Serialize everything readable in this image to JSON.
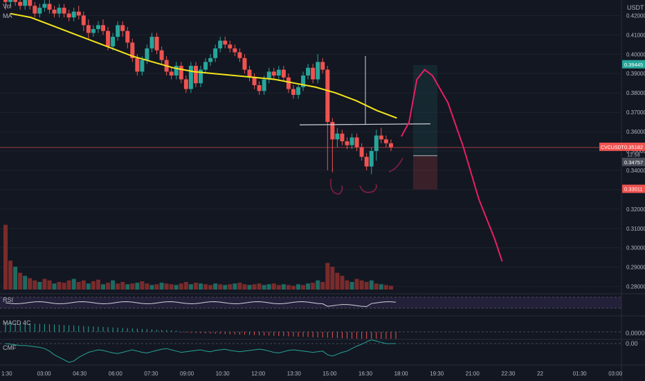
{
  "header": {
    "symbol": "CVCUSDT",
    "quote_currency": "USDT",
    "vol_label": "Vol",
    "ma_label": "MA"
  },
  "price_badges": {
    "last": {
      "label": "CVCUSDT",
      "value": "0.35182",
      "color": "#ef5350"
    },
    "countdown": "12:58",
    "target": {
      "value": "0.39445",
      "color": "#26a69a"
    },
    "entry": {
      "value": "0.34757",
      "color": "#787b86"
    },
    "stop": {
      "value": "0.33011",
      "color": "#ef5350"
    }
  },
  "indicators": {
    "rsi_label": "RSI",
    "macd_label": "MACD 4C",
    "cmf_label": "CMF",
    "macd_zero": "0.00000",
    "cmf_zero": "0.00"
  },
  "colors": {
    "up": "#26a69a",
    "down": "#ef5350",
    "ma": "#f5e61a",
    "drawing": "#e91e63",
    "background": "#131722",
    "grid": "#1e222d"
  },
  "chart_data": {
    "type": "candlestick",
    "y_axis_ticks": [
      "0.42000",
      "0.41000",
      "0.40000",
      "0.39000",
      "0.38000",
      "0.37000",
      "0.36000",
      "0.35000",
      "0.34000",
      "0.33000",
      "0.32000",
      "0.31000",
      "0.30000",
      "0.29000",
      "0.28000"
    ],
    "ylim": [
      0.277,
      0.428
    ],
    "x_axis_ticks": [
      "1:30",
      "03:00",
      "04:30",
      "06:00",
      "07:30",
      "09:00",
      "10:30",
      "12:00",
      "13:30",
      "15:00",
      "16:30",
      "18:00",
      "19:30",
      "21:00",
      "22:30",
      "22",
      "01:30",
      "03:00"
    ],
    "candles": [
      [
        0.429,
        0.427,
        0.429,
        0.423
      ],
      [
        0.427,
        0.428,
        0.432,
        0.425
      ],
      [
        0.428,
        0.427,
        0.43,
        0.425
      ],
      [
        0.427,
        0.425,
        0.429,
        0.423
      ],
      [
        0.425,
        0.428,
        0.43,
        0.423
      ],
      [
        0.428,
        0.425,
        0.43,
        0.423
      ],
      [
        0.425,
        0.421,
        0.427,
        0.419
      ],
      [
        0.421,
        0.424,
        0.426,
        0.419
      ],
      [
        0.424,
        0.426,
        0.428,
        0.422
      ],
      [
        0.426,
        0.423,
        0.428,
        0.421
      ],
      [
        0.423,
        0.421,
        0.425,
        0.419
      ],
      [
        0.421,
        0.424,
        0.426,
        0.419
      ],
      [
        0.424,
        0.421,
        0.426,
        0.419
      ],
      [
        0.421,
        0.419,
        0.423,
        0.417
      ],
      [
        0.419,
        0.422,
        0.424,
        0.417
      ],
      [
        0.422,
        0.42,
        0.425,
        0.418
      ],
      [
        0.42,
        0.415,
        0.422,
        0.412
      ],
      [
        0.415,
        0.411,
        0.418,
        0.408
      ],
      [
        0.411,
        0.413,
        0.415,
        0.409
      ],
      [
        0.413,
        0.415,
        0.417,
        0.411
      ],
      [
        0.415,
        0.412,
        0.418,
        0.41
      ],
      [
        0.412,
        0.404,
        0.414,
        0.402
      ],
      [
        0.404,
        0.409,
        0.411,
        0.402
      ],
      [
        0.409,
        0.415,
        0.417,
        0.407
      ],
      [
        0.415,
        0.412,
        0.417,
        0.409
      ],
      [
        0.412,
        0.406,
        0.414,
        0.403
      ],
      [
        0.406,
        0.398,
        0.408,
        0.396
      ],
      [
        0.398,
        0.391,
        0.4,
        0.389
      ],
      [
        0.391,
        0.397,
        0.399,
        0.389
      ],
      [
        0.397,
        0.403,
        0.405,
        0.395
      ],
      [
        0.403,
        0.409,
        0.411,
        0.401
      ],
      [
        0.409,
        0.402,
        0.411,
        0.4
      ],
      [
        0.402,
        0.397,
        0.404,
        0.395
      ],
      [
        0.397,
        0.391,
        0.399,
        0.389
      ],
      [
        0.391,
        0.389,
        0.393,
        0.387
      ],
      [
        0.389,
        0.394,
        0.396,
        0.387
      ],
      [
        0.394,
        0.387,
        0.396,
        0.385
      ],
      [
        0.387,
        0.382,
        0.389,
        0.38
      ],
      [
        0.382,
        0.394,
        0.396,
        0.38
      ],
      [
        0.394,
        0.385,
        0.396,
        0.383
      ],
      [
        0.385,
        0.392,
        0.394,
        0.383
      ],
      [
        0.392,
        0.396,
        0.398,
        0.39
      ],
      [
        0.396,
        0.398,
        0.4,
        0.394
      ],
      [
        0.398,
        0.403,
        0.405,
        0.396
      ],
      [
        0.403,
        0.407,
        0.409,
        0.401
      ],
      [
        0.407,
        0.405,
        0.409,
        0.403
      ],
      [
        0.405,
        0.403,
        0.407,
        0.401
      ],
      [
        0.403,
        0.401,
        0.405,
        0.399
      ],
      [
        0.401,
        0.398,
        0.403,
        0.396
      ],
      [
        0.398,
        0.392,
        0.4,
        0.39
      ],
      [
        0.392,
        0.388,
        0.394,
        0.386
      ],
      [
        0.388,
        0.384,
        0.39,
        0.382
      ],
      [
        0.384,
        0.381,
        0.386,
        0.379
      ],
      [
        0.381,
        0.387,
        0.389,
        0.379
      ],
      [
        0.387,
        0.391,
        0.393,
        0.385
      ],
      [
        0.391,
        0.389,
        0.393,
        0.387
      ],
      [
        0.389,
        0.392,
        0.394,
        0.387
      ],
      [
        0.392,
        0.388,
        0.394,
        0.386
      ],
      [
        0.388,
        0.382,
        0.39,
        0.38
      ],
      [
        0.382,
        0.379,
        0.384,
        0.377
      ],
      [
        0.379,
        0.383,
        0.385,
        0.377
      ],
      [
        0.383,
        0.389,
        0.391,
        0.381
      ],
      [
        0.389,
        0.393,
        0.395,
        0.387
      ],
      [
        0.393,
        0.387,
        0.395,
        0.385
      ],
      [
        0.387,
        0.396,
        0.4,
        0.385
      ],
      [
        0.396,
        0.392,
        0.398,
        0.39
      ],
      [
        0.392,
        0.365,
        0.394,
        0.34
      ],
      [
        0.365,
        0.356,
        0.367,
        0.339
      ],
      [
        0.356,
        0.359,
        0.362,
        0.352
      ],
      [
        0.359,
        0.355,
        0.361,
        0.353
      ],
      [
        0.355,
        0.353,
        0.357,
        0.351
      ],
      [
        0.353,
        0.357,
        0.359,
        0.351
      ],
      [
        0.357,
        0.352,
        0.359,
        0.35
      ],
      [
        0.352,
        0.347,
        0.354,
        0.345
      ],
      [
        0.347,
        0.342,
        0.349,
        0.34
      ],
      [
        0.342,
        0.35,
        0.352,
        0.338
      ],
      [
        0.35,
        0.358,
        0.361,
        0.345
      ],
      [
        0.358,
        0.356,
        0.362,
        0.354
      ],
      [
        0.356,
        0.354,
        0.358,
        0.352
      ],
      [
        0.354,
        0.352,
        0.356,
        0.35
      ]
    ],
    "volumes": [
      [
        0.85,
        "down"
      ],
      [
        0.38,
        "down"
      ],
      [
        0.3,
        "up"
      ],
      [
        0.22,
        "down"
      ],
      [
        0.18,
        "up"
      ],
      [
        0.15,
        "down"
      ],
      [
        0.12,
        "down"
      ],
      [
        0.1,
        "up"
      ],
      [
        0.14,
        "down"
      ],
      [
        0.12,
        "down"
      ],
      [
        0.08,
        "up"
      ],
      [
        0.1,
        "down"
      ],
      [
        0.09,
        "down"
      ],
      [
        0.12,
        "down"
      ],
      [
        0.14,
        "up"
      ],
      [
        0.1,
        "down"
      ],
      [
        0.12,
        "down"
      ],
      [
        0.08,
        "up"
      ],
      [
        0.11,
        "down"
      ],
      [
        0.13,
        "down"
      ],
      [
        0.07,
        "up"
      ],
      [
        0.09,
        "down"
      ],
      [
        0.12,
        "up"
      ],
      [
        0.08,
        "down"
      ],
      [
        0.1,
        "down"
      ],
      [
        0.07,
        "up"
      ],
      [
        0.08,
        "down"
      ],
      [
        0.09,
        "up"
      ],
      [
        0.11,
        "down"
      ],
      [
        0.08,
        "down"
      ],
      [
        0.06,
        "up"
      ],
      [
        0.07,
        "down"
      ],
      [
        0.09,
        "up"
      ],
      [
        0.08,
        "down"
      ],
      [
        0.07,
        "down"
      ],
      [
        0.06,
        "up"
      ],
      [
        0.08,
        "down"
      ],
      [
        0.1,
        "down"
      ],
      [
        0.07,
        "up"
      ],
      [
        0.09,
        "down"
      ],
      [
        0.08,
        "up"
      ],
      [
        0.07,
        "down"
      ],
      [
        0.06,
        "down"
      ],
      [
        0.08,
        "up"
      ],
      [
        0.07,
        "down"
      ],
      [
        0.06,
        "up"
      ],
      [
        0.07,
        "down"
      ],
      [
        0.08,
        "up"
      ],
      [
        0.09,
        "down"
      ],
      [
        0.07,
        "down"
      ],
      [
        0.06,
        "up"
      ],
      [
        0.07,
        "down"
      ],
      [
        0.08,
        "down"
      ],
      [
        0.06,
        "up"
      ],
      [
        0.07,
        "up"
      ],
      [
        0.08,
        "down"
      ],
      [
        0.06,
        "down"
      ],
      [
        0.07,
        "up"
      ],
      [
        0.06,
        "down"
      ],
      [
        0.05,
        "down"
      ],
      [
        0.07,
        "up"
      ],
      [
        0.06,
        "down"
      ],
      [
        0.08,
        "up"
      ],
      [
        0.09,
        "down"
      ],
      [
        0.12,
        "up"
      ],
      [
        0.1,
        "down"
      ],
      [
        0.35,
        "down"
      ],
      [
        0.3,
        "down"
      ],
      [
        0.22,
        "down"
      ],
      [
        0.18,
        "down"
      ],
      [
        0.12,
        "down"
      ],
      [
        0.1,
        "up"
      ],
      [
        0.14,
        "down"
      ],
      [
        0.12,
        "down"
      ],
      [
        0.1,
        "down"
      ],
      [
        0.12,
        "up"
      ],
      [
        0.08,
        "down"
      ],
      [
        0.07,
        "up"
      ],
      [
        0.06,
        "down"
      ],
      [
        0.05,
        "down"
      ]
    ],
    "ma_line": [
      0.421,
      0.419,
      0.415,
      0.411,
      0.407,
      0.403,
      0.399,
      0.396,
      0.393,
      0.391,
      0.39,
      0.389,
      0.388,
      0.387,
      0.385,
      0.383,
      0.38,
      0.376,
      0.371,
      0.367
    ],
    "horizontal_level": 0.3635,
    "last_price": 0.35182,
    "position": {
      "target": 0.39445,
      "entry": 0.34757,
      "stop": 0.33011
    },
    "projection": [
      [
        0.3575,
        0
      ],
      [
        0.365,
        2
      ],
      [
        0.387,
        4
      ],
      [
        0.392,
        6
      ],
      [
        0.389,
        8
      ],
      [
        0.375,
        12
      ],
      [
        0.352,
        16
      ],
      [
        0.325,
        20
      ],
      [
        0.305,
        24
      ],
      [
        0.293,
        26
      ]
    ]
  }
}
